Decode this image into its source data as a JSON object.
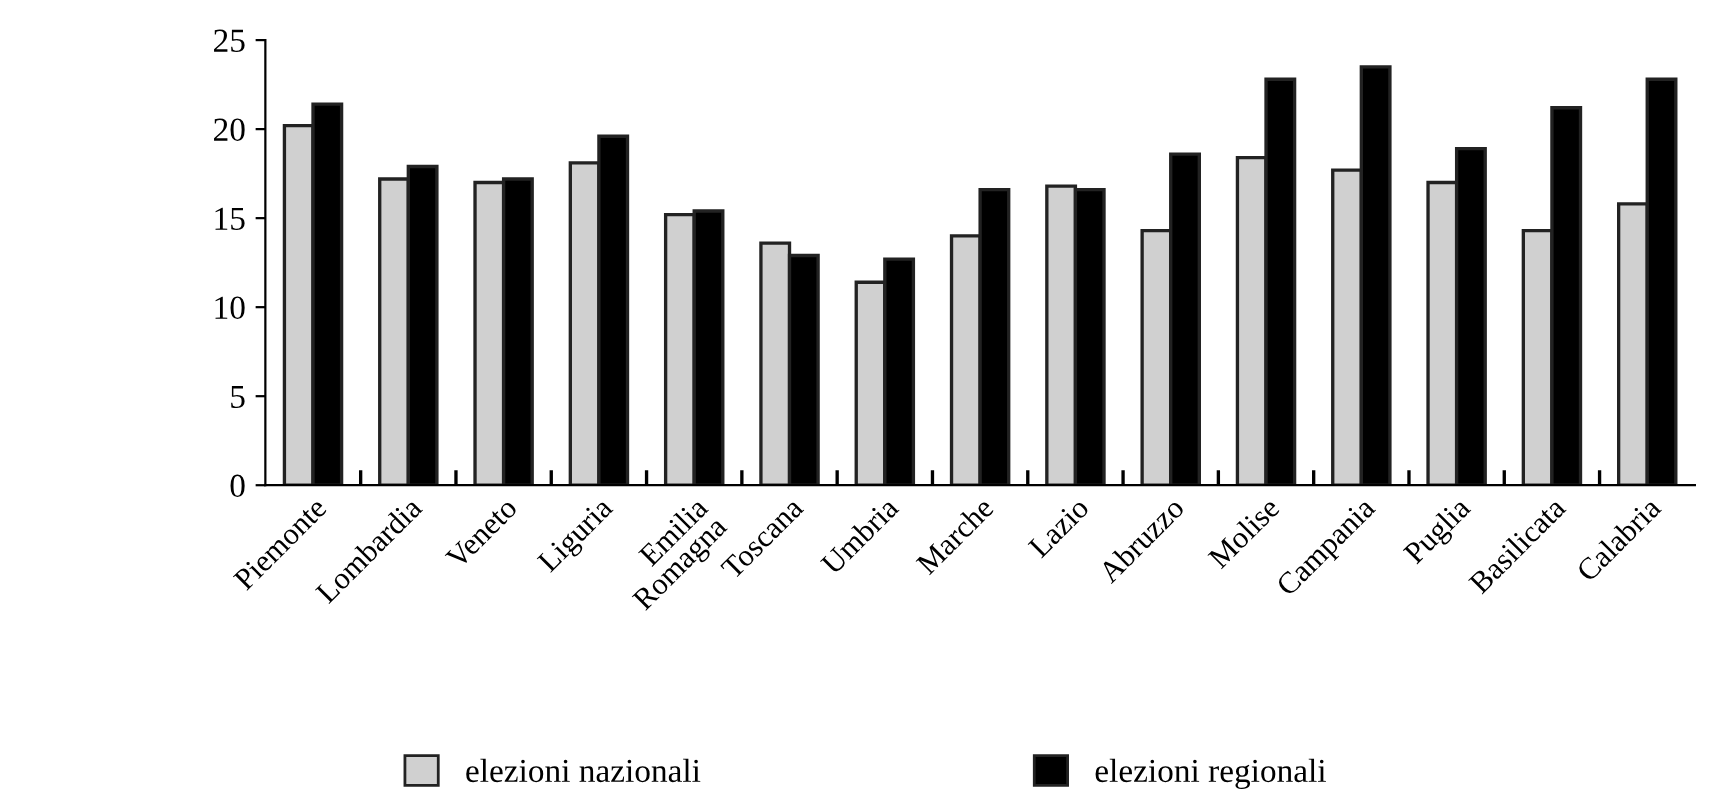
{
  "chart_data": {
    "type": "bar",
    "categories": [
      "Piemonte",
      "Lombardia",
      "Veneto",
      "Liguria",
      "Emilia\nRomagna",
      "Toscana",
      "Umbria",
      "Marche",
      "Lazio",
      "Abruzzo",
      "Molise",
      "Campania",
      "Puglia",
      "Basilicata",
      "Calabria"
    ],
    "series": [
      {
        "name": "elezioni nazionali",
        "color": "#d0d0d0",
        "values": [
          20.2,
          17.2,
          17.0,
          18.1,
          15.2,
          13.6,
          11.4,
          14.0,
          16.8,
          14.3,
          18.4,
          17.7,
          17.0,
          14.3,
          15.8
        ]
      },
      {
        "name": "elezioni regionali",
        "color": "#000000",
        "values": [
          21.4,
          17.9,
          17.2,
          19.6,
          15.4,
          12.9,
          12.7,
          16.6,
          16.6,
          18.6,
          22.8,
          23.5,
          18.9,
          21.2,
          22.8
        ]
      }
    ],
    "ylim": [
      0,
      25
    ],
    "yticks": [
      0,
      5,
      10,
      15,
      20,
      25
    ],
    "grid": false,
    "legend": "bottom"
  }
}
